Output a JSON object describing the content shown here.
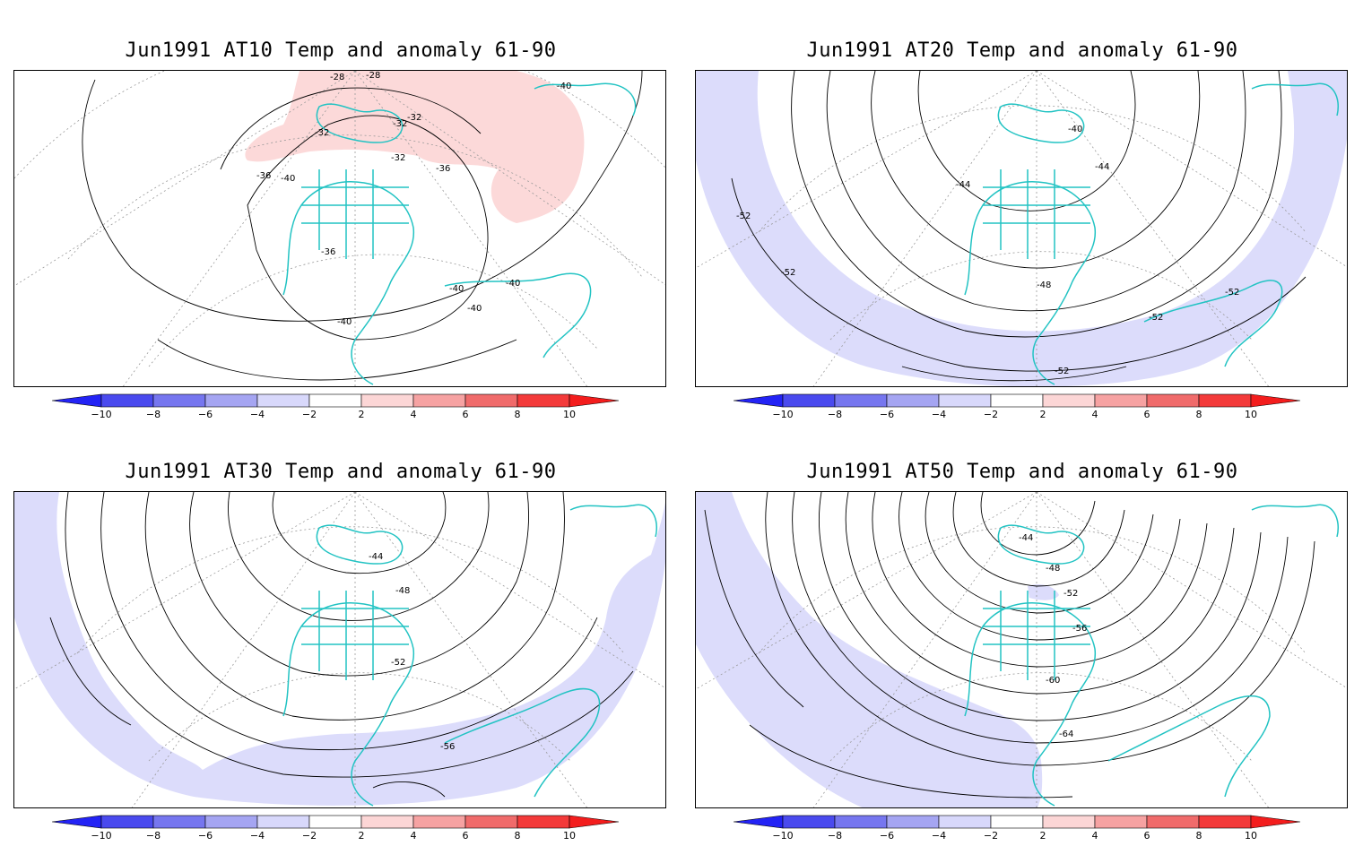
{
  "colors": {
    "coast": "#22c3c3",
    "negative_shading": "#dcdcfb",
    "positive_shading": "#fcd9d9",
    "contour": "#000000",
    "grid": "#999999"
  },
  "colorbar": {
    "labels": [
      "-10",
      "-8",
      "-6",
      "-4",
      "-2",
      "2",
      "4",
      "6",
      "8",
      "10"
    ],
    "colors": [
      "#2323f5",
      "#4a4aee",
      "#7676ef",
      "#a5a5f2",
      "#d8d8fb",
      "#ffffff",
      "#fcd6d6",
      "#f6a2a2",
      "#f06b6b",
      "#f33a3a",
      "#f31d1d"
    ]
  },
  "panels": [
    {
      "title": "Jun1991 AT10 Temp and anomaly 61-90",
      "contour_labels": [
        "-28",
        "-28",
        "-40",
        "-32",
        "-32",
        "-32",
        "-32",
        "-36",
        "-36",
        "-40",
        "-36",
        "-40",
        "-40",
        "-40",
        "-40"
      ]
    },
    {
      "title": "Jun1991 AT20 Temp and anomaly 61-90",
      "contour_labels": [
        "-40",
        "-44",
        "-44",
        "-52",
        "-52",
        "-48",
        "-52",
        "-52",
        "-52"
      ]
    },
    {
      "title": "Jun1991 AT30 Temp and anomaly 61-90",
      "contour_labels": [
        "-44",
        "-48",
        "-52",
        "-56"
      ]
    },
    {
      "title": "Jun1991 AT50 Temp and anomaly 61-90",
      "contour_labels": [
        "-44",
        "-48",
        "-52",
        "-56",
        "-60",
        "-64"
      ]
    }
  ]
}
